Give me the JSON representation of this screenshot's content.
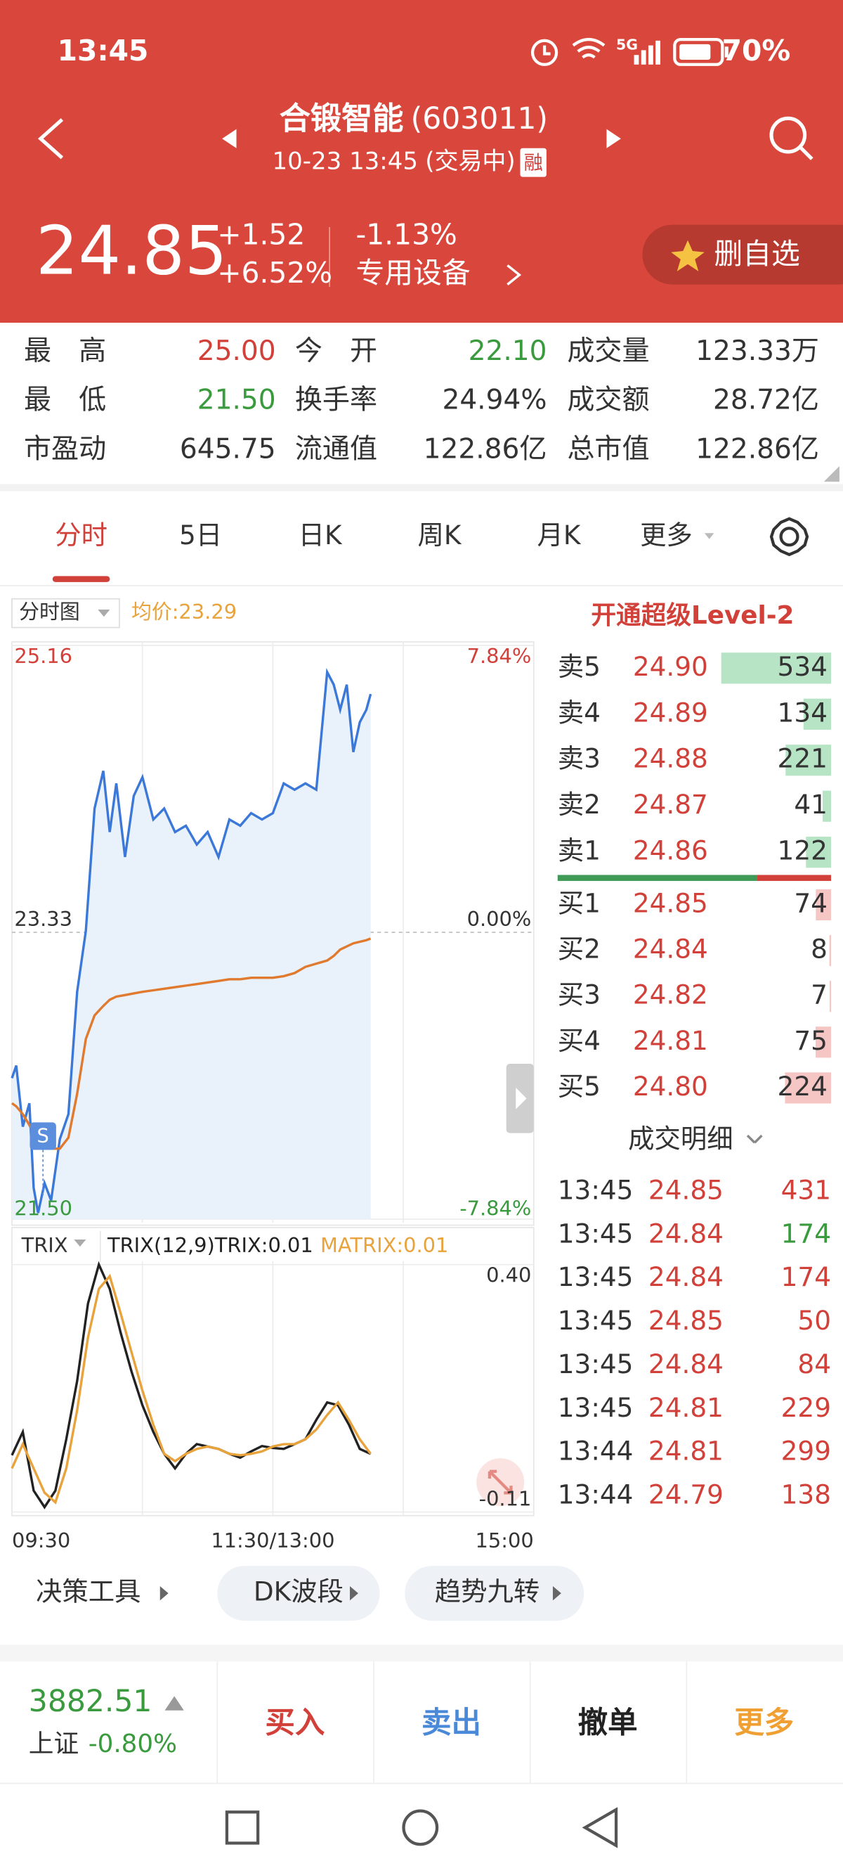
{
  "status_bar": {
    "time": "13:45",
    "network": "5G",
    "battery": "70%"
  },
  "header": {
    "name": "合锻智能",
    "code": "(603011)",
    "datetime": "10-23 13:45",
    "state": "(交易中)",
    "badge": "融"
  },
  "quote": {
    "price": "24.85",
    "change": "+1.52",
    "change_pct": "+6.52%",
    "sector_pct": "-1.13%",
    "sector": "专用设备",
    "watch_button": "删自选"
  },
  "stats": [
    [
      {
        "label": "最　高",
        "value": "25.00",
        "tone": "up"
      },
      {
        "label": "今　开",
        "value": "22.10",
        "tone": "down"
      },
      {
        "label": "成交量",
        "value": "123.33万",
        "tone": "flat"
      }
    ],
    [
      {
        "label": "最　低",
        "value": "21.50",
        "tone": "down"
      },
      {
        "label": "换手率",
        "value": "24.94%",
        "tone": "flat"
      },
      {
        "label": "成交额",
        "value": "28.72亿",
        "tone": "flat"
      }
    ],
    [
      {
        "label": "市盈动",
        "value": "645.75",
        "tone": "flat"
      },
      {
        "label": "流通值",
        "value": "122.86亿",
        "tone": "flat"
      },
      {
        "label": "总市值",
        "value": "122.86亿",
        "tone": "flat"
      }
    ]
  ],
  "tabs": {
    "items": [
      "分时",
      "5日",
      "日K",
      "周K",
      "月K",
      "更多"
    ],
    "active": 0
  },
  "chart_data": [
    {
      "type": "line",
      "mode_label": "分时图",
      "avg_label": "均价:23.29",
      "marker": "S",
      "x": [
        0,
        2,
        5,
        8,
        10,
        12,
        15,
        18,
        22,
        26,
        30,
        34,
        38,
        42,
        45,
        48,
        52,
        56,
        60,
        65,
        70,
        75,
        80,
        85,
        90,
        95,
        100,
        105,
        110,
        115,
        120,
        125,
        130,
        135,
        140,
        145,
        148,
        151,
        154,
        157,
        160,
        163,
        165
      ],
      "series": [
        {
          "color": "#3b78d8",
          "fill": "#e9f1fb",
          "values": [
            22.4,
            22.48,
            22.09,
            22.24,
            21.7,
            21.54,
            21.73,
            21.62,
            22.01,
            22.17,
            22.95,
            23.34,
            24.12,
            24.36,
            23.97,
            24.28,
            23.81,
            24.2,
            24.32,
            24.05,
            24.12,
            23.97,
            24.01,
            23.89,
            23.97,
            23.81,
            24.05,
            24.01,
            24.09,
            24.05,
            24.09,
            24.28,
            24.24,
            24.28,
            24.24,
            24.99,
            24.91,
            24.75,
            24.91,
            24.48,
            24.67,
            24.75,
            24.85
          ]
        },
        {
          "color": "#e07a2e",
          "values": [
            22.24,
            22.22,
            22.17,
            22.1,
            22.05,
            22.01,
            21.98,
            21.95,
            21.95,
            22.02,
            22.3,
            22.65,
            22.8,
            22.86,
            22.9,
            22.92,
            22.93,
            22.94,
            22.95,
            22.96,
            22.97,
            22.98,
            22.99,
            23.0,
            23.01,
            23.02,
            23.03,
            23.03,
            23.04,
            23.04,
            23.04,
            23.05,
            23.07,
            23.11,
            23.13,
            23.15,
            23.18,
            23.22,
            23.24,
            23.26,
            23.27,
            23.28,
            23.29
          ]
        }
      ],
      "xlim": [
        0,
        240
      ],
      "ylim": [
        21.5,
        25.16
      ],
      "yticks": [
        {
          "value": 21.5,
          "label": "21.50"
        },
        23.33,
        25.16
      ],
      "y2lim": [
        -7.84,
        7.84
      ],
      "y2ticks": [
        {
          "value": -7.84,
          "label": "-7.84%"
        },
        {
          "value": 0,
          "label": "0.00%"
        },
        {
          "value": 7.84,
          "label": "7.84%"
        }
      ]
    },
    {
      "type": "line",
      "indicator_label": "TRIX",
      "x": [
        0,
        5,
        10,
        15,
        20,
        25,
        30,
        35,
        40,
        45,
        50,
        55,
        60,
        65,
        70,
        75,
        80,
        85,
        90,
        95,
        100,
        105,
        110,
        115,
        120,
        125,
        130,
        135,
        140,
        145,
        150,
        155,
        160,
        165
      ],
      "series": [
        {
          "name": "TRIX(12,9)TRIX:0.01",
          "color": "#222222",
          "values": [
            0.007,
            0.055,
            -0.066,
            -0.1,
            -0.066,
            0.04,
            0.16,
            0.32,
            0.4,
            0.35,
            0.26,
            0.18,
            0.11,
            0.055,
            0.01,
            -0.02,
            0.01,
            0.03,
            0.025,
            0.02,
            0.01,
            0.002,
            0.015,
            0.026,
            0.022,
            0.02,
            0.03,
            0.04,
            0.08,
            0.116,
            0.11,
            0.07,
            0.02,
            0.01
          ]
        },
        {
          "name": "MATRIX:0.01",
          "color": "#e8a33c",
          "values": [
            -0.02,
            0.03,
            -0.02,
            -0.07,
            -0.09,
            -0.02,
            0.1,
            0.25,
            0.35,
            0.376,
            0.3,
            0.22,
            0.14,
            0.07,
            0.01,
            -0.005,
            0.01,
            0.02,
            0.025,
            0.02,
            0.01,
            0.007,
            0.01,
            0.015,
            0.025,
            0.03,
            0.03,
            0.04,
            0.06,
            0.09,
            0.116,
            0.08,
            0.04,
            0.01
          ]
        }
      ],
      "xlim": [
        0,
        240
      ],
      "ylim": [
        -0.11,
        0.4
      ],
      "yticks": [
        {
          "value": 0.4,
          "label": "0.40"
        },
        -0.11
      ],
      "xticks": [
        {
          "value": 0,
          "label": "09:30"
        },
        {
          "value": 120,
          "label": "11:30/13:00"
        },
        {
          "value": 240,
          "label": "15:00"
        }
      ]
    }
  ],
  "order_book": {
    "title": "开通超级Level-2",
    "asks": [
      {
        "label": "卖5",
        "price": "24.90",
        "volume": 534
      },
      {
        "label": "卖4",
        "price": "24.89",
        "volume": 134
      },
      {
        "label": "卖3",
        "price": "24.88",
        "volume": 221
      },
      {
        "label": "卖2",
        "price": "24.87",
        "volume": 41
      },
      {
        "label": "卖1",
        "price": "24.86",
        "volume": 122
      }
    ],
    "bids": [
      {
        "label": "买1",
        "price": "24.85",
        "volume": 74
      },
      {
        "label": "买2",
        "price": "24.84",
        "volume": 8
      },
      {
        "label": "买3",
        "price": "24.82",
        "volume": 7
      },
      {
        "label": "买4",
        "price": "24.81",
        "volume": 75
      },
      {
        "label": "买5",
        "price": "24.80",
        "volume": 224
      }
    ]
  },
  "trades": {
    "title": "成交明细",
    "rows": [
      {
        "time": "13:45",
        "price": "24.85",
        "volume": 431,
        "side": "buy"
      },
      {
        "time": "13:45",
        "price": "24.84",
        "volume": 174,
        "side": "sell"
      },
      {
        "time": "13:45",
        "price": "24.84",
        "volume": 174,
        "side": "buy"
      },
      {
        "time": "13:45",
        "price": "24.85",
        "volume": 50,
        "side": "buy"
      },
      {
        "time": "13:45",
        "price": "24.84",
        "volume": 84,
        "side": "buy"
      },
      {
        "time": "13:45",
        "price": "24.81",
        "volume": 229,
        "side": "buy"
      },
      {
        "time": "13:44",
        "price": "24.81",
        "volume": 299,
        "side": "buy"
      },
      {
        "time": "13:44",
        "price": "24.79",
        "volume": 138,
        "side": "buy"
      }
    ]
  },
  "tools": [
    "决策工具",
    "DK波段",
    "趋势九转"
  ],
  "footer": {
    "index_value": "3882.51",
    "index_name": "上证",
    "index_pct": "-0.80%",
    "actions": [
      "买入",
      "卖出",
      "撤单",
      "更多"
    ]
  }
}
